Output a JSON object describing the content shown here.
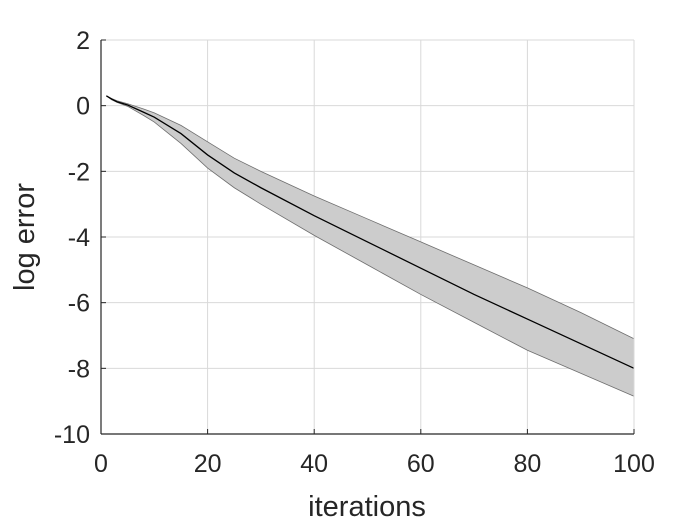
{
  "chart_data": {
    "type": "line",
    "title": "",
    "xlabel": "iterations",
    "ylabel": "log error",
    "xlim": [
      0,
      100
    ],
    "ylim": [
      -10,
      2
    ],
    "xticks": [
      0,
      20,
      40,
      60,
      80,
      100
    ],
    "yticks": [
      -10,
      -8,
      -6,
      -4,
      -2,
      0,
      2
    ],
    "grid": true,
    "x": [
      1,
      2,
      3,
      5,
      8,
      10,
      15,
      20,
      25,
      30,
      40,
      50,
      60,
      70,
      80,
      90,
      100
    ],
    "series": [
      {
        "values": [
          0.3,
          0.2,
          0.12,
          0.02,
          -0.2,
          -0.35,
          -0.85,
          -1.5,
          -2.05,
          -2.5,
          -3.35,
          -4.15,
          -4.95,
          -5.75,
          -6.5,
          -7.25,
          -8.0
        ]
      }
    ],
    "band": {
      "upper": [
        0.3,
        0.22,
        0.15,
        0.06,
        -0.1,
        -0.22,
        -0.6,
        -1.1,
        -1.6,
        -2.0,
        -2.75,
        -3.45,
        -4.15,
        -4.85,
        -5.55,
        -6.3,
        -7.1
      ],
      "lower": [
        0.3,
        0.18,
        0.1,
        -0.02,
        -0.3,
        -0.5,
        -1.15,
        -1.9,
        -2.5,
        -3.0,
        -3.95,
        -4.85,
        -5.75,
        -6.6,
        -7.45,
        -8.15,
        -8.85
      ]
    },
    "colors": {
      "line": "#000000",
      "band_fill": "#cccccc",
      "band_edge": "#6e6e6e"
    }
  }
}
